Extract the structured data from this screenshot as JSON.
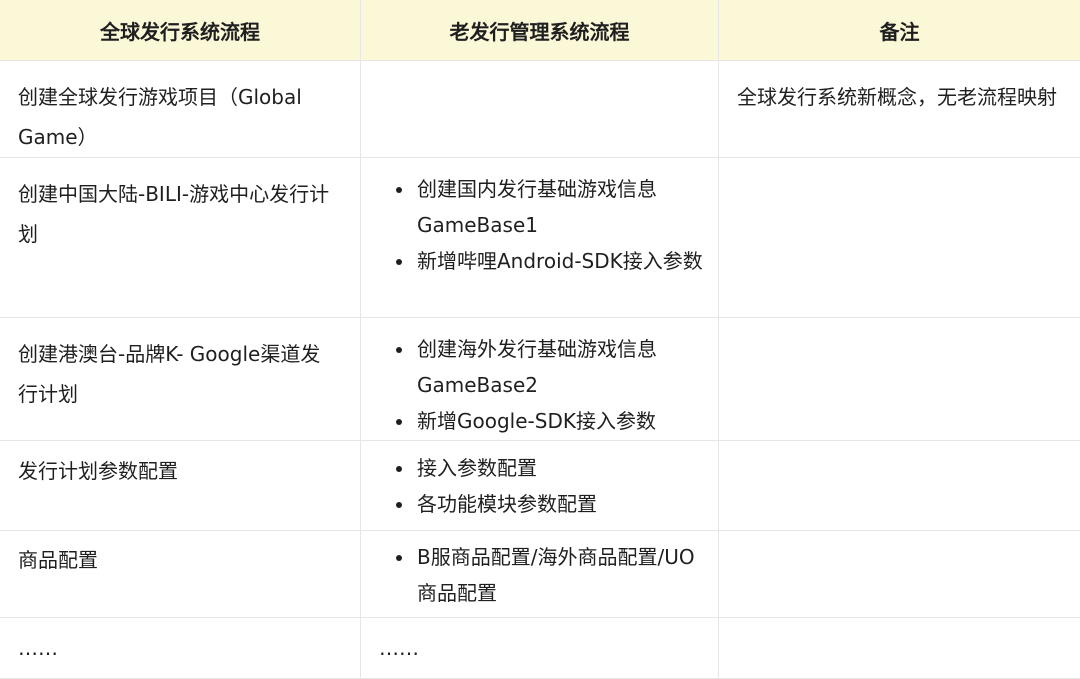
{
  "table": {
    "headers": [
      "全球发行系统流程",
      "老发行管理系统流程",
      "备注"
    ],
    "rows": [
      {
        "global": "创建全球发行游戏项目（Global Game）",
        "legacy": [],
        "note": "全球发行系统新概念，无老流程映射"
      },
      {
        "global": "创建中国大陆-BILI-游戏中心发行计划",
        "legacy": [
          "创建国内发行基础游戏信息GameBase1",
          "新增哔哩Android-SDK接入参数"
        ],
        "note": ""
      },
      {
        "global": "创建港澳台-品牌K- Google渠道发行计划",
        "legacy": [
          "创建海外发行基础游戏信息GameBase2",
          "新增Google-SDK接入参数"
        ],
        "note": ""
      },
      {
        "global": "发行计划参数配置",
        "legacy": [
          "接入参数配置",
          "各功能模块参数配置"
        ],
        "note": ""
      },
      {
        "global": "商品配置",
        "legacy": [
          "B服商品配置/海外商品配置/UO商品配置"
        ],
        "note": ""
      },
      {
        "global": "……",
        "legacy_text": "……",
        "note": ""
      }
    ]
  }
}
